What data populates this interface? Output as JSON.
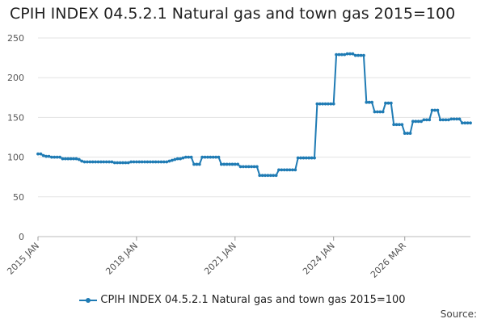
{
  "title": "CPIH INDEX 04.5.2.1 Natural gas and town gas 2015=100",
  "source_label": "Source:",
  "chart_data": {
    "type": "line",
    "title": "CPIH INDEX 04.5.2.1 Natural gas and town gas 2015=100",
    "xlabel": "",
    "ylabel": "",
    "x_start": "2015 JAN",
    "x_end": "2026 MAR",
    "x_ticks": [
      "2015 JAN",
      "2018 JAN",
      "2021 JAN",
      "2024 JAN",
      "2026 MAR"
    ],
    "ylim": [
      0,
      250
    ],
    "y_ticks": [
      0,
      50,
      100,
      150,
      200,
      250
    ],
    "grid": true,
    "legend_position": "bottom",
    "series": [
      {
        "name": "CPIH INDEX 04.5.2.1 Natural gas and town gas 2015=100",
        "color": "#1f7bb4",
        "values": [
          104,
          104,
          102,
          101,
          101,
          100,
          100,
          100,
          100,
          98,
          98,
          98,
          98,
          98,
          98,
          97,
          95,
          94,
          94,
          94,
          94,
          94,
          94,
          94,
          94,
          94,
          94,
          94,
          93,
          93,
          93,
          93,
          93,
          93,
          94,
          94,
          94,
          94,
          94,
          94,
          94,
          94,
          94,
          94,
          94,
          94,
          94,
          94,
          95,
          96,
          97,
          98,
          98,
          99,
          100,
          100,
          100,
          91,
          91,
          91,
          100,
          100,
          100,
          100,
          100,
          100,
          100,
          91,
          91,
          91,
          91,
          91,
          91,
          91,
          88,
          88,
          88,
          88,
          88,
          88,
          88,
          77,
          77,
          77,
          77,
          77,
          77,
          77,
          84,
          84,
          84,
          84,
          84,
          84,
          84,
          99,
          99,
          99,
          99,
          99,
          99,
          99,
          167,
          167,
          167,
          167,
          167,
          167,
          167,
          229,
          229,
          229,
          229,
          230,
          230,
          230,
          228,
          228,
          228,
          228,
          169,
          169,
          169,
          157,
          157,
          157,
          157,
          168,
          168,
          168,
          141,
          141,
          141,
          141,
          130,
          130,
          130,
          145,
          145,
          145,
          145,
          147,
          147,
          147,
          159,
          159,
          159,
          147,
          147,
          147,
          147,
          148,
          148,
          148,
          148,
          143,
          143,
          143,
          143
        ]
      }
    ]
  }
}
